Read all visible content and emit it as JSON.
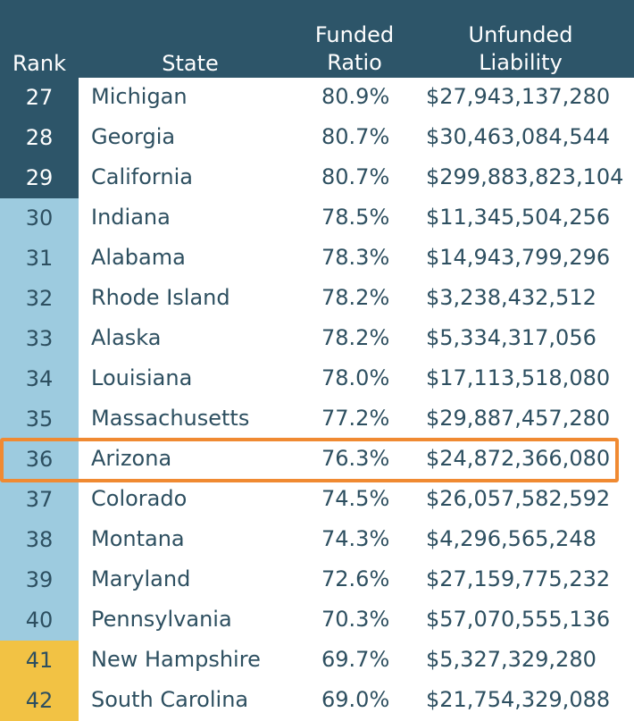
{
  "header": {
    "rank": "Rank",
    "state": "State",
    "funded_line1": "Funded",
    "funded_line2": "Ratio",
    "unfunded_line1": "Unfunded",
    "unfunded_line2": "Liability"
  },
  "colors": {
    "header_bg": "#2d5569",
    "tier_dark": "#2d5569",
    "tier_light": "#9dcbdf",
    "tier_yellow": "#f2c244",
    "highlight": "#f08a32",
    "text": "#2d4f60"
  },
  "highlighted_state": "Arizona",
  "chart_data": {
    "type": "table",
    "columns": [
      "Rank",
      "State",
      "Funded Ratio",
      "Unfunded Liability"
    ],
    "rows": [
      {
        "rank": "27",
        "state": "Michigan",
        "funded": "80.9%",
        "unfunded": "$27,943,137,280",
        "tier": "dark"
      },
      {
        "rank": "28",
        "state": "Georgia",
        "funded": "80.7%",
        "unfunded": "$30,463,084,544",
        "tier": "dark"
      },
      {
        "rank": "29",
        "state": "California",
        "funded": "80.7%",
        "unfunded": "$299,883,823,104",
        "tier": "dark"
      },
      {
        "rank": "30",
        "state": "Indiana",
        "funded": "78.5%",
        "unfunded": "$11,345,504,256",
        "tier": "light"
      },
      {
        "rank": "31",
        "state": "Alabama",
        "funded": "78.3%",
        "unfunded": "$14,943,799,296",
        "tier": "light"
      },
      {
        "rank": "32",
        "state": "Rhode Island",
        "funded": "78.2%",
        "unfunded": "$3,238,432,512",
        "tier": "light"
      },
      {
        "rank": "33",
        "state": "Alaska",
        "funded": "78.2%",
        "unfunded": "$5,334,317,056",
        "tier": "light"
      },
      {
        "rank": "34",
        "state": "Louisiana",
        "funded": "78.0%",
        "unfunded": "$17,113,518,080",
        "tier": "light"
      },
      {
        "rank": "35",
        "state": "Massachusetts",
        "funded": "77.2%",
        "unfunded": "$29,887,457,280",
        "tier": "light"
      },
      {
        "rank": "36",
        "state": "Arizona",
        "funded": "76.3%",
        "unfunded": "$24,872,366,080",
        "tier": "light"
      },
      {
        "rank": "37",
        "state": "Colorado",
        "funded": "74.5%",
        "unfunded": "$26,057,582,592",
        "tier": "light"
      },
      {
        "rank": "38",
        "state": "Montana",
        "funded": "74.3%",
        "unfunded": "$4,296,565,248",
        "tier": "light"
      },
      {
        "rank": "39",
        "state": "Maryland",
        "funded": "72.6%",
        "unfunded": "$27,159,775,232",
        "tier": "light"
      },
      {
        "rank": "40",
        "state": "Pennsylvania",
        "funded": "70.3%",
        "unfunded": "$57,070,555,136",
        "tier": "light"
      },
      {
        "rank": "41",
        "state": "New Hampshire",
        "funded": "69.7%",
        "unfunded": "$5,327,329,280",
        "tier": "yellow"
      },
      {
        "rank": "42",
        "state": "South Carolina",
        "funded": "69.0%",
        "unfunded": "$21,754,329,088",
        "tier": "yellow"
      }
    ]
  }
}
